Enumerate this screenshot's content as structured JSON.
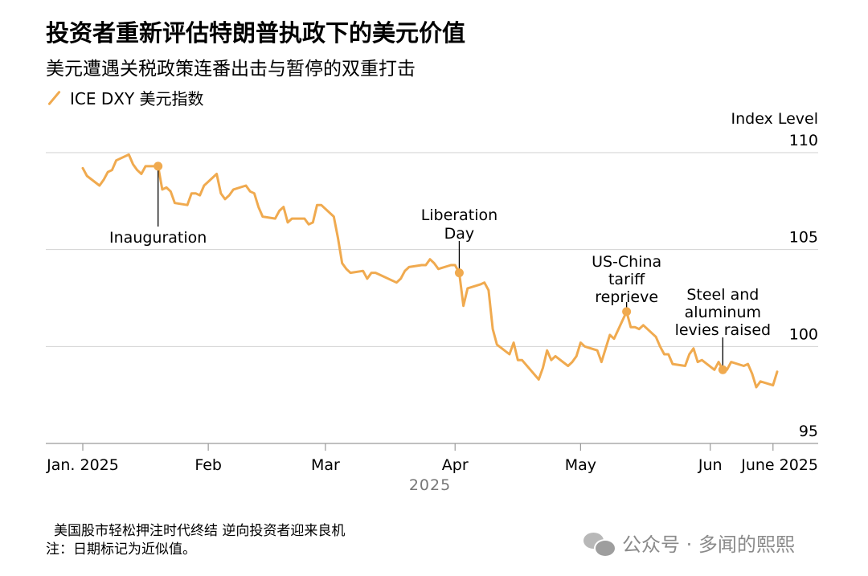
{
  "title": "投资者重新评估特朗普执政下的美元价值",
  "subtitle": "美元遭遇关税政策连番出击与暂停的双重打击",
  "legend": {
    "label": "ICE DXY 美元指数",
    "color": "#F0AA4F"
  },
  "unit_label": "Index Level",
  "chart_data": {
    "type": "line",
    "title": "投资者重新评估特朗普执政下的美元价值",
    "subtitle": "美元遭遇关税政策连番出击与暂停的双重打击",
    "ylabel": "Index Level",
    "ylim": [
      95,
      110
    ],
    "yticks": [
      95,
      100,
      105,
      110
    ],
    "grid": true,
    "legend_position": "top-left",
    "x_axis_title": "2025",
    "xticks": [
      {
        "x": "2025-01-02",
        "label": "Jan. 2025"
      },
      {
        "x": "2025-02-01",
        "label": "Feb"
      },
      {
        "x": "2025-03-01",
        "label": "Mar"
      },
      {
        "x": "2025-04-01",
        "label": "Apr"
      },
      {
        "x": "2025-05-01",
        "label": "May"
      },
      {
        "x": "2025-06-01",
        "label": "Jun"
      },
      {
        "x": "2025-06-16",
        "label": "June 2025"
      }
    ],
    "series": [
      {
        "name": "ICE DXY 美元指数",
        "color": "#F0AA4F",
        "points": [
          [
            "2025-01-02",
            109.2
          ],
          [
            "2025-01-03",
            108.8
          ],
          [
            "2025-01-06",
            108.3
          ],
          [
            "2025-01-07",
            108.6
          ],
          [
            "2025-01-08",
            109.0
          ],
          [
            "2025-01-09",
            109.1
          ],
          [
            "2025-01-10",
            109.6
          ],
          [
            "2025-01-13",
            109.9
          ],
          [
            "2025-01-14",
            109.4
          ],
          [
            "2025-01-15",
            109.1
          ],
          [
            "2025-01-16",
            108.9
          ],
          [
            "2025-01-17",
            109.3
          ],
          [
            "2025-01-20",
            109.3
          ],
          [
            "2025-01-21",
            108.1
          ],
          [
            "2025-01-22",
            108.2
          ],
          [
            "2025-01-23",
            108.0
          ],
          [
            "2025-01-24",
            107.4
          ],
          [
            "2025-01-27",
            107.3
          ],
          [
            "2025-01-28",
            107.9
          ],
          [
            "2025-01-29",
            107.9
          ],
          [
            "2025-01-30",
            107.8
          ],
          [
            "2025-01-31",
            108.3
          ],
          [
            "2025-02-03",
            108.9
          ],
          [
            "2025-02-04",
            107.9
          ],
          [
            "2025-02-05",
            107.6
          ],
          [
            "2025-02-06",
            107.8
          ],
          [
            "2025-02-07",
            108.1
          ],
          [
            "2025-02-10",
            108.3
          ],
          [
            "2025-02-11",
            108.0
          ],
          [
            "2025-02-12",
            107.9
          ],
          [
            "2025-02-13",
            107.2
          ],
          [
            "2025-02-14",
            106.7
          ],
          [
            "2025-02-17",
            106.6
          ],
          [
            "2025-02-18",
            107.0
          ],
          [
            "2025-02-19",
            107.2
          ],
          [
            "2025-02-20",
            106.4
          ],
          [
            "2025-02-21",
            106.6
          ],
          [
            "2025-02-24",
            106.6
          ],
          [
            "2025-02-25",
            106.3
          ],
          [
            "2025-02-26",
            106.4
          ],
          [
            "2025-02-27",
            107.3
          ],
          [
            "2025-02-28",
            107.3
          ],
          [
            "2025-03-03",
            106.7
          ],
          [
            "2025-03-04",
            105.6
          ],
          [
            "2025-03-05",
            104.3
          ],
          [
            "2025-03-06",
            104.0
          ],
          [
            "2025-03-07",
            103.8
          ],
          [
            "2025-03-10",
            103.9
          ],
          [
            "2025-03-11",
            103.5
          ],
          [
            "2025-03-12",
            103.8
          ],
          [
            "2025-03-13",
            103.8
          ],
          [
            "2025-03-14",
            103.7
          ],
          [
            "2025-03-17",
            103.4
          ],
          [
            "2025-03-18",
            103.3
          ],
          [
            "2025-03-19",
            103.5
          ],
          [
            "2025-03-20",
            103.9
          ],
          [
            "2025-03-21",
            104.1
          ],
          [
            "2025-03-24",
            104.2
          ],
          [
            "2025-03-25",
            104.2
          ],
          [
            "2025-03-26",
            104.5
          ],
          [
            "2025-03-27",
            104.3
          ],
          [
            "2025-03-28",
            104.0
          ],
          [
            "2025-03-31",
            104.2
          ],
          [
            "2025-04-01",
            104.2
          ],
          [
            "2025-04-02",
            103.8
          ],
          [
            "2025-04-03",
            102.1
          ],
          [
            "2025-04-04",
            103.0
          ],
          [
            "2025-04-07",
            103.2
          ],
          [
            "2025-04-08",
            103.3
          ],
          [
            "2025-04-09",
            102.9
          ],
          [
            "2025-04-10",
            100.9
          ],
          [
            "2025-04-11",
            100.1
          ],
          [
            "2025-04-14",
            99.6
          ],
          [
            "2025-04-15",
            100.2
          ],
          [
            "2025-04-16",
            99.3
          ],
          [
            "2025-04-17",
            99.3
          ],
          [
            "2025-04-21",
            98.3
          ],
          [
            "2025-04-22",
            98.9
          ],
          [
            "2025-04-23",
            99.8
          ],
          [
            "2025-04-24",
            99.3
          ],
          [
            "2025-04-25",
            99.5
          ],
          [
            "2025-04-28",
            99.0
          ],
          [
            "2025-04-29",
            99.2
          ],
          [
            "2025-04-30",
            99.5
          ],
          [
            "2025-05-01",
            100.2
          ],
          [
            "2025-05-02",
            100.0
          ],
          [
            "2025-05-05",
            99.8
          ],
          [
            "2025-05-06",
            99.2
          ],
          [
            "2025-05-07",
            99.9
          ],
          [
            "2025-05-08",
            100.6
          ],
          [
            "2025-05-09",
            100.4
          ],
          [
            "2025-05-12",
            101.8
          ],
          [
            "2025-05-13",
            101.0
          ],
          [
            "2025-05-14",
            101.0
          ],
          [
            "2025-05-15",
            100.9
          ],
          [
            "2025-05-16",
            101.1
          ],
          [
            "2025-05-19",
            100.5
          ],
          [
            "2025-05-20",
            100.0
          ],
          [
            "2025-05-21",
            99.6
          ],
          [
            "2025-05-22",
            99.6
          ],
          [
            "2025-05-23",
            99.1
          ],
          [
            "2025-05-26",
            99.0
          ],
          [
            "2025-05-27",
            99.6
          ],
          [
            "2025-05-28",
            99.9
          ],
          [
            "2025-05-29",
            99.2
          ],
          [
            "2025-05-30",
            99.3
          ],
          [
            "2025-06-02",
            98.8
          ],
          [
            "2025-06-03",
            99.2
          ],
          [
            "2025-06-04",
            98.8
          ],
          [
            "2025-06-05",
            98.8
          ],
          [
            "2025-06-06",
            99.2
          ],
          [
            "2025-06-09",
            99.0
          ],
          [
            "2025-06-10",
            99.1
          ],
          [
            "2025-06-11",
            98.6
          ],
          [
            "2025-06-12",
            97.9
          ],
          [
            "2025-06-13",
            98.2
          ],
          [
            "2025-06-16",
            98.0
          ],
          [
            "2025-06-17",
            98.7
          ]
        ]
      }
    ],
    "annotations": [
      {
        "x": "2025-01-20",
        "y": 109.3,
        "label": "Inauguration"
      },
      {
        "x": "2025-04-02",
        "y": 103.8,
        "label": "Liberation Day"
      },
      {
        "x": "2025-05-12",
        "y": 101.8,
        "label": "US-China tariff reprieve"
      },
      {
        "x": "2025-06-04",
        "y": 98.8,
        "label": "Steel and aluminum levies raised"
      }
    ]
  },
  "annotation_text": {
    "inauguration": "Inauguration",
    "liberation_1": "Liberation",
    "liberation_2": "Day",
    "uschina_1": "US-China",
    "uschina_2": "tariff",
    "uschina_3": "reprieve",
    "steel_1": "Steel and",
    "steel_2": "aluminum",
    "steel_3": "levies raised"
  },
  "footer": {
    "source_line": "美国股市轻松押注时代终结 逆向投资者迎来良机",
    "note_line": "注：日期标记为近似值。"
  },
  "watermark": {
    "text": "公众号 · 多闻的熙熙"
  }
}
